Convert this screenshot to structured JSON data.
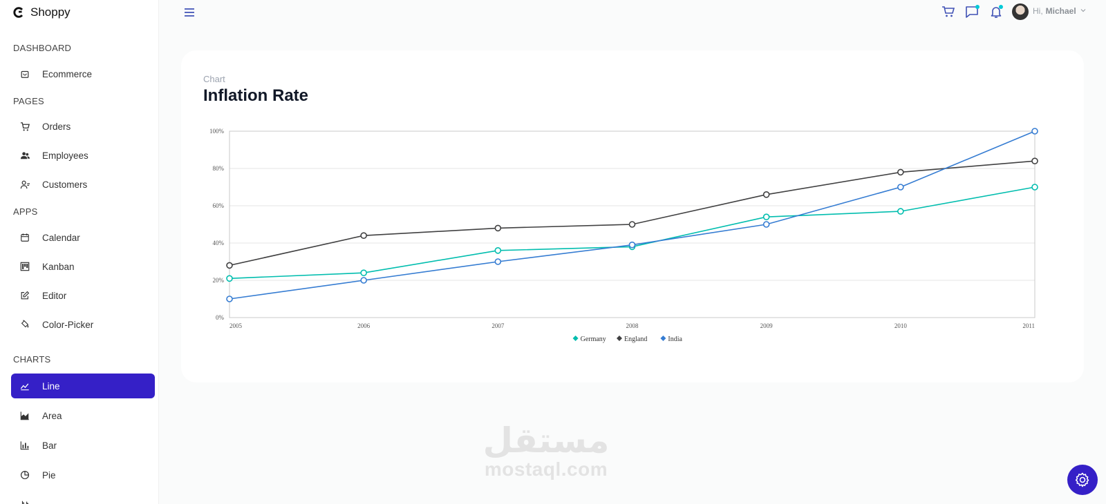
{
  "app": {
    "name": "Shoppy"
  },
  "sidebar": {
    "sections": [
      {
        "title": "DASHBOARD",
        "items": [
          {
            "label": "Ecommerce",
            "icon": "bag-icon"
          }
        ]
      },
      {
        "title": "PAGES",
        "items": [
          {
            "label": "Orders",
            "icon": "cart-icon"
          },
          {
            "label": "Employees",
            "icon": "employees-icon"
          },
          {
            "label": "Customers",
            "icon": "customers-icon"
          }
        ]
      },
      {
        "title": "APPS",
        "items": [
          {
            "label": "Calendar",
            "icon": "calendar-icon"
          },
          {
            "label": "Kanban",
            "icon": "kanban-icon"
          },
          {
            "label": "Editor",
            "icon": "edit-icon"
          },
          {
            "label": "Color-Picker",
            "icon": "color-picker-icon"
          }
        ]
      },
      {
        "title": "CHARTS",
        "items": [
          {
            "label": "Line",
            "icon": "line-chart-icon",
            "active": true
          },
          {
            "label": "Area",
            "icon": "area-chart-icon"
          },
          {
            "label": "Bar",
            "icon": "bar-chart-icon"
          },
          {
            "label": "Pie",
            "icon": "pie-chart-icon"
          }
        ]
      }
    ]
  },
  "topbar": {
    "greeting": "Hi,",
    "user_name": "Michael",
    "icons": [
      "menu-icon",
      "cart-icon",
      "chat-icon",
      "bell-icon",
      "avatar",
      "chevron-down-icon"
    ]
  },
  "card": {
    "kicker": "Chart",
    "title": "Inflation Rate"
  },
  "chart_data": {
    "type": "line",
    "x": [
      "2005",
      "2006",
      "2007",
      "2008",
      "2009",
      "2010",
      "2011"
    ],
    "yticks": [
      "0%",
      "20%",
      "40%",
      "60%",
      "80%",
      "100%"
    ],
    "ylim": [
      0,
      100
    ],
    "grid": true,
    "legend": "bottom-center",
    "series": [
      {
        "name": "Germany",
        "color": "#00bdae",
        "values": [
          21,
          24,
          36,
          38,
          54,
          57,
          70
        ]
      },
      {
        "name": "England",
        "color": "#404041",
        "values": [
          28,
          44,
          48,
          50,
          66,
          78,
          84
        ]
      },
      {
        "name": "India",
        "color": "#357cd2",
        "values": [
          10,
          20,
          30,
          39,
          50,
          70,
          100
        ]
      }
    ]
  },
  "watermark": {
    "arabic": "مستقل",
    "latin": "mostaql.com"
  },
  "colors": {
    "accent": "#3520c7",
    "notify": "#03c9d7",
    "icon": "#3f51b5"
  }
}
